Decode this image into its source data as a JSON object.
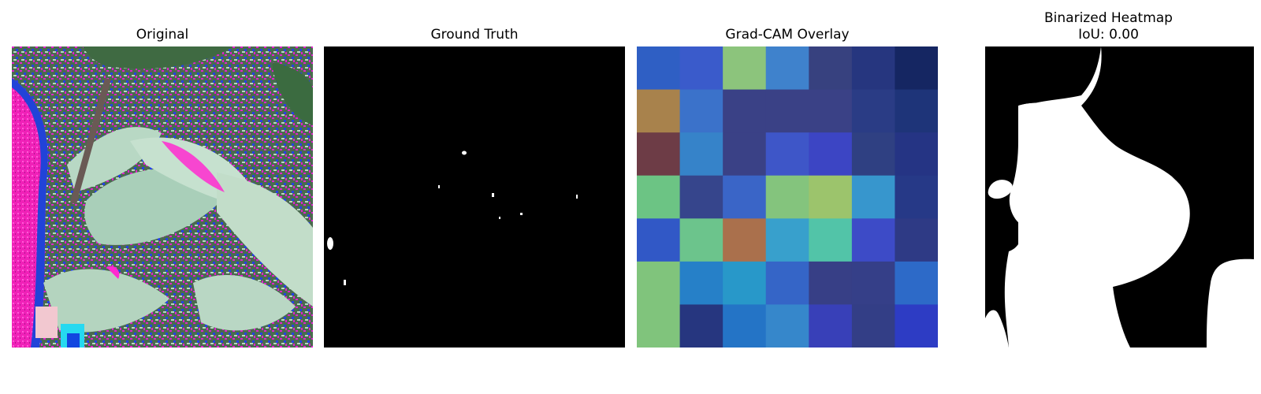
{
  "panels": [
    {
      "title": "Original"
    },
    {
      "title": "Ground Truth"
    },
    {
      "title": "Grad-CAM Overlay"
    },
    {
      "title": "Binarized Heatmap",
      "subtitle": "IoU: 0.00"
    }
  ],
  "colors": {
    "background": "#ffffff",
    "mask_foreground": "#ffffff",
    "mask_background": "#000000"
  },
  "gradcam_grid_colors": [
    [
      "#2f5fc4",
      "#3a5bcb",
      "#8cc47c",
      "#3f82cc",
      "#37417f",
      "#26367f",
      "#152662"
    ],
    [
      "#a8824c",
      "#3b72ca",
      "#3a4186",
      "#3a4186",
      "#3a4186",
      "#2a3c85",
      "#1e3479"
    ],
    [
      "#6d3c46",
      "#3683c9",
      "#3a4186",
      "#3e56c8",
      "#3c45c4",
      "#2f4082",
      "#253484"
    ],
    [
      "#6cc484",
      "#36458c",
      "#3a65c7",
      "#84c47d",
      "#9cc46c",
      "#3796cd",
      "#263987"
    ],
    [
      "#3158c6",
      "#6cc48c",
      "#aa704c",
      "#38a0cc",
      "#52c4a8",
      "#3d4bc7",
      "#2e3a85"
    ],
    [
      "#80c47c",
      "#2680c8",
      "#2898c9",
      "#3565c7",
      "#373f86",
      "#353f88",
      "#2d6ac8"
    ],
    [
      "#80c47c",
      "#26367f",
      "#2474c6",
      "#3687cb",
      "#3840b8",
      "#333e86",
      "#2d3cc4"
    ]
  ]
}
